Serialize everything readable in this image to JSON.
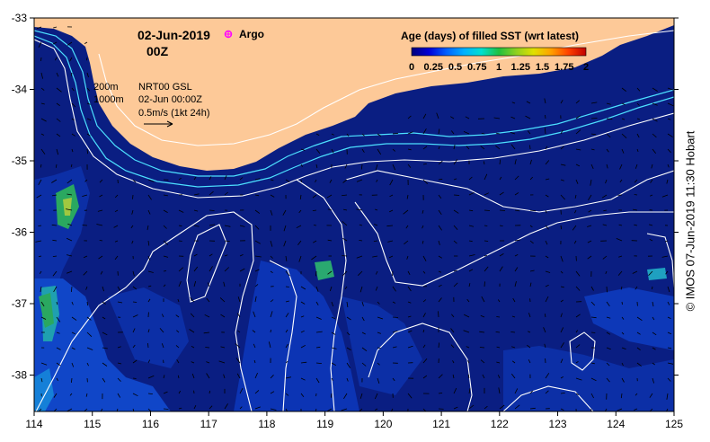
{
  "header": {
    "date": "02-Jun-2019",
    "time": "00Z",
    "argo_label": "Argo"
  },
  "legend": {
    "isobath_shallow": "200m",
    "isobath_deep": "1000m",
    "product": "NRT00 GSL",
    "datetime": "02-Jun 00:00Z",
    "vector_scale": "0.5m/s (1kt 24h)"
  },
  "colorbar": {
    "title": "Age (days) of filled SST (wrt latest)",
    "ticks": [
      "0",
      "0.25",
      "0.5",
      "0.75",
      "1",
      "1.25",
      "1.5",
      "1.75",
      "2"
    ],
    "colors": [
      "#00007a",
      "#0000d8",
      "#0060ff",
      "#00b0ff",
      "#00e0d0",
      "#20c040",
      "#90d020",
      "#e0e000",
      "#ffa000",
      "#ff4000",
      "#c00000"
    ]
  },
  "axes": {
    "x_ticks": [
      "114",
      "115",
      "116",
      "117",
      "118",
      "119",
      "120",
      "121",
      "122",
      "123",
      "124",
      "125"
    ],
    "y_ticks": [
      "-33",
      "-34",
      "-35",
      "-36",
      "-37",
      "-38"
    ]
  },
  "credit": "© IMOS 07-Jun-2019 11:30 Hobart",
  "colors": {
    "land": "#fdc998",
    "ocean": "#0a1e82",
    "ocean_alt": "#0c2fa6",
    "isobath_shallow": "#4ce0ff",
    "contour": "#ffffff",
    "argo_marker": "#ff00ff"
  }
}
